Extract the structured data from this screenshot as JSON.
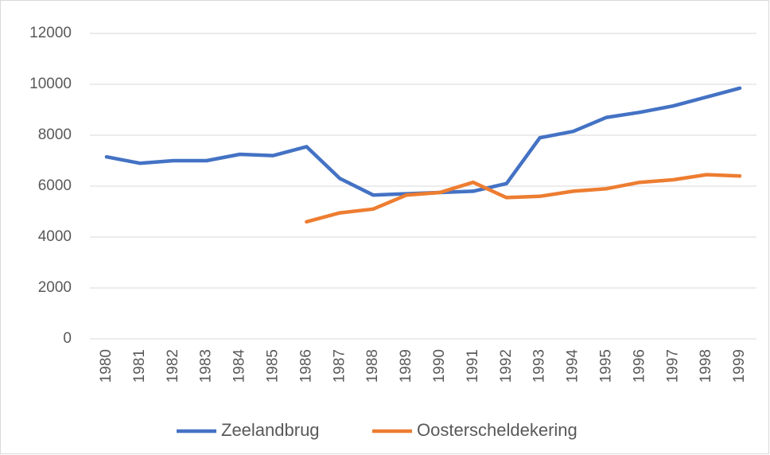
{
  "chart_data": {
    "type": "line",
    "categories": [
      "1980",
      "1981",
      "1982",
      "1983",
      "1984",
      "1985",
      "1986",
      "1987",
      "1988",
      "1989",
      "1990",
      "1991",
      "1992",
      "1993",
      "1994",
      "1995",
      "1996",
      "1997",
      "1998",
      "1999"
    ],
    "series": [
      {
        "name": "Zeelandbrug",
        "color": "#4472c4",
        "values": [
          7150,
          6900,
          7000,
          7000,
          7250,
          7200,
          7550,
          6300,
          5650,
          5700,
          5750,
          5800,
          6100,
          7900,
          8150,
          8700,
          8900,
          9150,
          9500,
          9850
        ]
      },
      {
        "name": "Oosterscheldekering",
        "color": "#ed7d31",
        "values": [
          null,
          null,
          null,
          null,
          null,
          null,
          4600,
          4950,
          5100,
          5650,
          5750,
          6150,
          5550,
          5600,
          5800,
          5900,
          6150,
          6250,
          6450,
          6400
        ]
      }
    ],
    "ylim": [
      0,
      12000
    ],
    "yticks": [
      0,
      2000,
      4000,
      6000,
      8000,
      10000,
      12000
    ],
    "grid": true,
    "legend": "bottom"
  }
}
